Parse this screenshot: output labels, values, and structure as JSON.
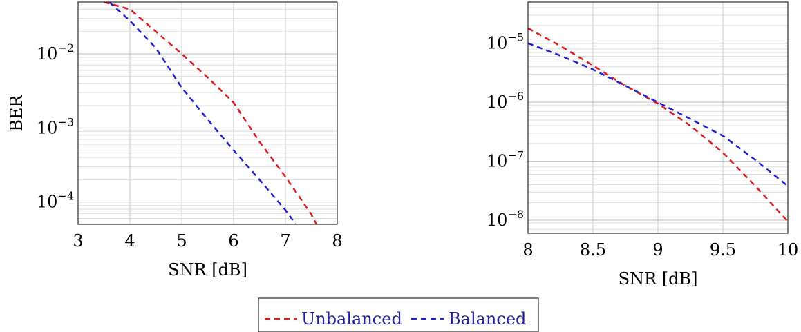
{
  "chart_data": [
    {
      "type": "line",
      "xlabel": "SNR [dB]",
      "ylabel": "BER",
      "xscale": "linear",
      "yscale": "log",
      "xlim": [
        3,
        8
      ],
      "ylim": [
        5e-05,
        0.05
      ],
      "xticks": [
        3,
        4,
        5,
        6,
        7,
        8
      ],
      "xtick_labels": [
        "3",
        "4",
        "5",
        "6",
        "7",
        "8"
      ],
      "ytick_labels": [
        {
          "base": "10",
          "exp": "−2",
          "value": 0.01
        },
        {
          "base": "10",
          "exp": "−3",
          "value": 0.001
        },
        {
          "base": "10",
          "exp": "−4",
          "value": 0.0001
        }
      ],
      "grid": true,
      "series": [
        {
          "name": "Unbalanced",
          "color": "#e31a1c",
          "style": "dashed",
          "x": [
            3.5,
            4.0,
            4.5,
            5.0,
            5.5,
            6.0,
            6.5,
            7.0,
            7.5,
            7.6
          ],
          "y": [
            0.05,
            0.04,
            0.02,
            0.01,
            0.0048,
            0.0022,
            0.00065,
            0.00022,
            6.8e-05,
            5e-05
          ]
        },
        {
          "name": "Balanced",
          "color": "#1f1fd6",
          "style": "dashed",
          "x": [
            3.6,
            4.0,
            4.5,
            5.0,
            5.5,
            6.0,
            6.5,
            7.0,
            7.2
          ],
          "y": [
            0.05,
            0.028,
            0.012,
            0.0035,
            0.0013,
            0.0005,
            0.0002,
            7.8e-05,
            5e-05
          ]
        }
      ]
    },
    {
      "type": "line",
      "xlabel": "SNR [dB]",
      "ylabel": "",
      "xscale": "linear",
      "yscale": "log",
      "xlim": [
        8,
        10
      ],
      "ylim": [
        6e-09,
        5e-05
      ],
      "xticks": [
        8,
        8.5,
        9,
        9.5,
        10
      ],
      "xtick_labels": [
        "8",
        "8.5",
        "9",
        "9.5",
        "10"
      ],
      "ytick_labels": [
        {
          "base": "10",
          "exp": "−5",
          "value": 1e-05
        },
        {
          "base": "10",
          "exp": "−6",
          "value": 1e-06
        },
        {
          "base": "10",
          "exp": "−7",
          "value": 1e-07
        },
        {
          "base": "10",
          "exp": "−8",
          "value": 1e-08
        }
      ],
      "grid": true,
      "series": [
        {
          "name": "Unbalanced",
          "color": "#e31a1c",
          "style": "dashed",
          "x": [
            8.0,
            8.25,
            8.5,
            8.75,
            9.0,
            9.25,
            9.5,
            9.75,
            10.0
          ],
          "y": [
            1.8e-05,
            9e-06,
            4.2e-06,
            1.9e-06,
            9.5e-07,
            4e-07,
            1.4e-07,
            3.8e-08,
            9.5e-09
          ]
        },
        {
          "name": "Balanced",
          "color": "#1f1fd6",
          "style": "dashed",
          "x": [
            8.0,
            8.25,
            8.5,
            8.75,
            9.0,
            9.25,
            9.5,
            9.75,
            10.0
          ],
          "y": [
            1e-05,
            6.2e-06,
            3.6e-06,
            1.9e-06,
            1e-06,
            5.2e-07,
            2.7e-07,
            1.05e-07,
            3.8e-08
          ]
        }
      ]
    }
  ],
  "legend": {
    "placement": "bottom-center",
    "entries": [
      {
        "label": "Unbalanced",
        "color": "#e31a1c"
      },
      {
        "label": "Balanced",
        "color": "#1f1fd6"
      }
    ]
  }
}
